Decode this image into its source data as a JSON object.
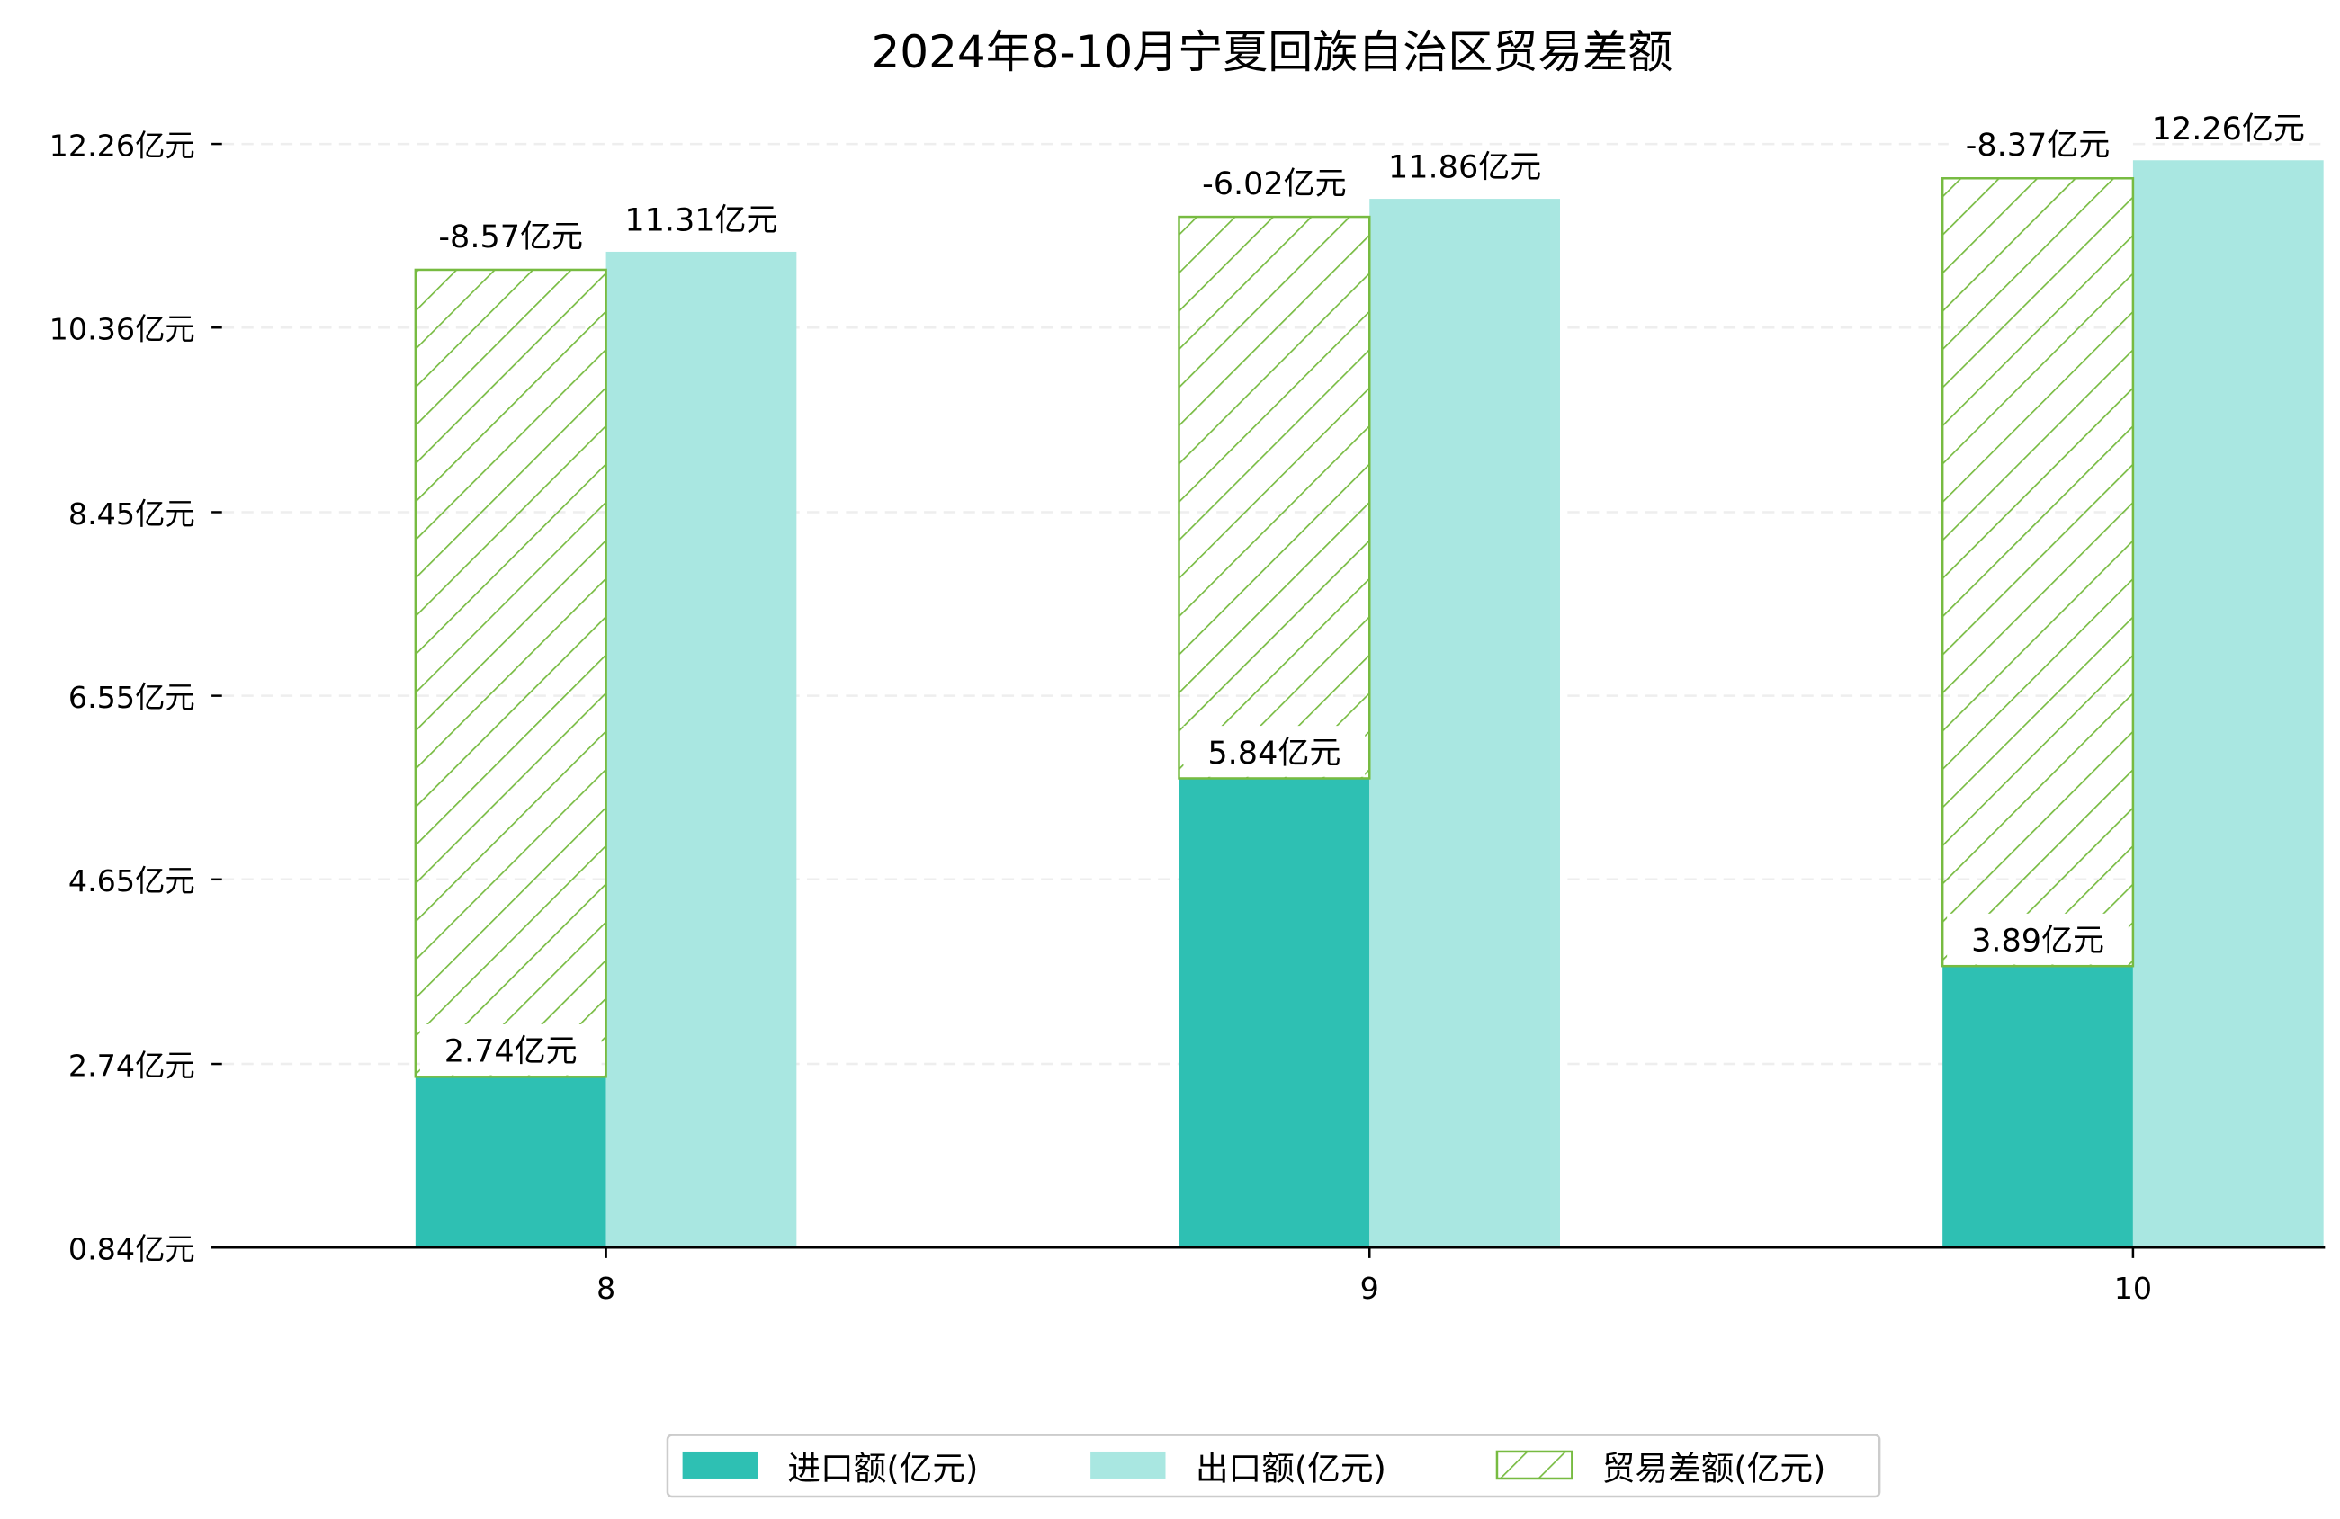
{
  "chart_data": {
    "type": "bar",
    "title": "2024年8-10月宁夏回族自治区贸易差额",
    "xlabel": "",
    "ylabel": "",
    "categories": [
      "8",
      "9",
      "10"
    ],
    "series": [
      {
        "name": "进口额(亿元)",
        "values": [
          2.74,
          5.84,
          3.89
        ],
        "color": "#2ec0b3",
        "labels": [
          "2.74亿元",
          "5.84亿元",
          "3.89亿元"
        ]
      },
      {
        "name": "出口额(亿元)",
        "values": [
          11.31,
          11.86,
          12.26
        ],
        "color": "#a9e7e1",
        "labels": [
          "11.31亿元",
          "11.86亿元",
          "12.26亿元"
        ]
      },
      {
        "name": "贸易差额(亿元)",
        "values": [
          -8.57,
          -6.02,
          -8.37
        ],
        "color": "#77bb41",
        "hatch": true,
        "labels": [
          "-8.57亿元",
          "-6.02亿元",
          "-8.37亿元"
        ]
      }
    ],
    "yticks": [
      0.84,
      2.74,
      4.65,
      6.55,
      8.45,
      10.36,
      12.26
    ],
    "ytick_labels": [
      "0.84亿元",
      "2.74亿元",
      "4.65亿元",
      "6.55亿元",
      "8.45亿元",
      "10.36亿元",
      "12.26亿元"
    ],
    "ylim": [
      0.84,
      12.26
    ],
    "grid": "y-dashed",
    "legend_position": "bottom-center"
  }
}
